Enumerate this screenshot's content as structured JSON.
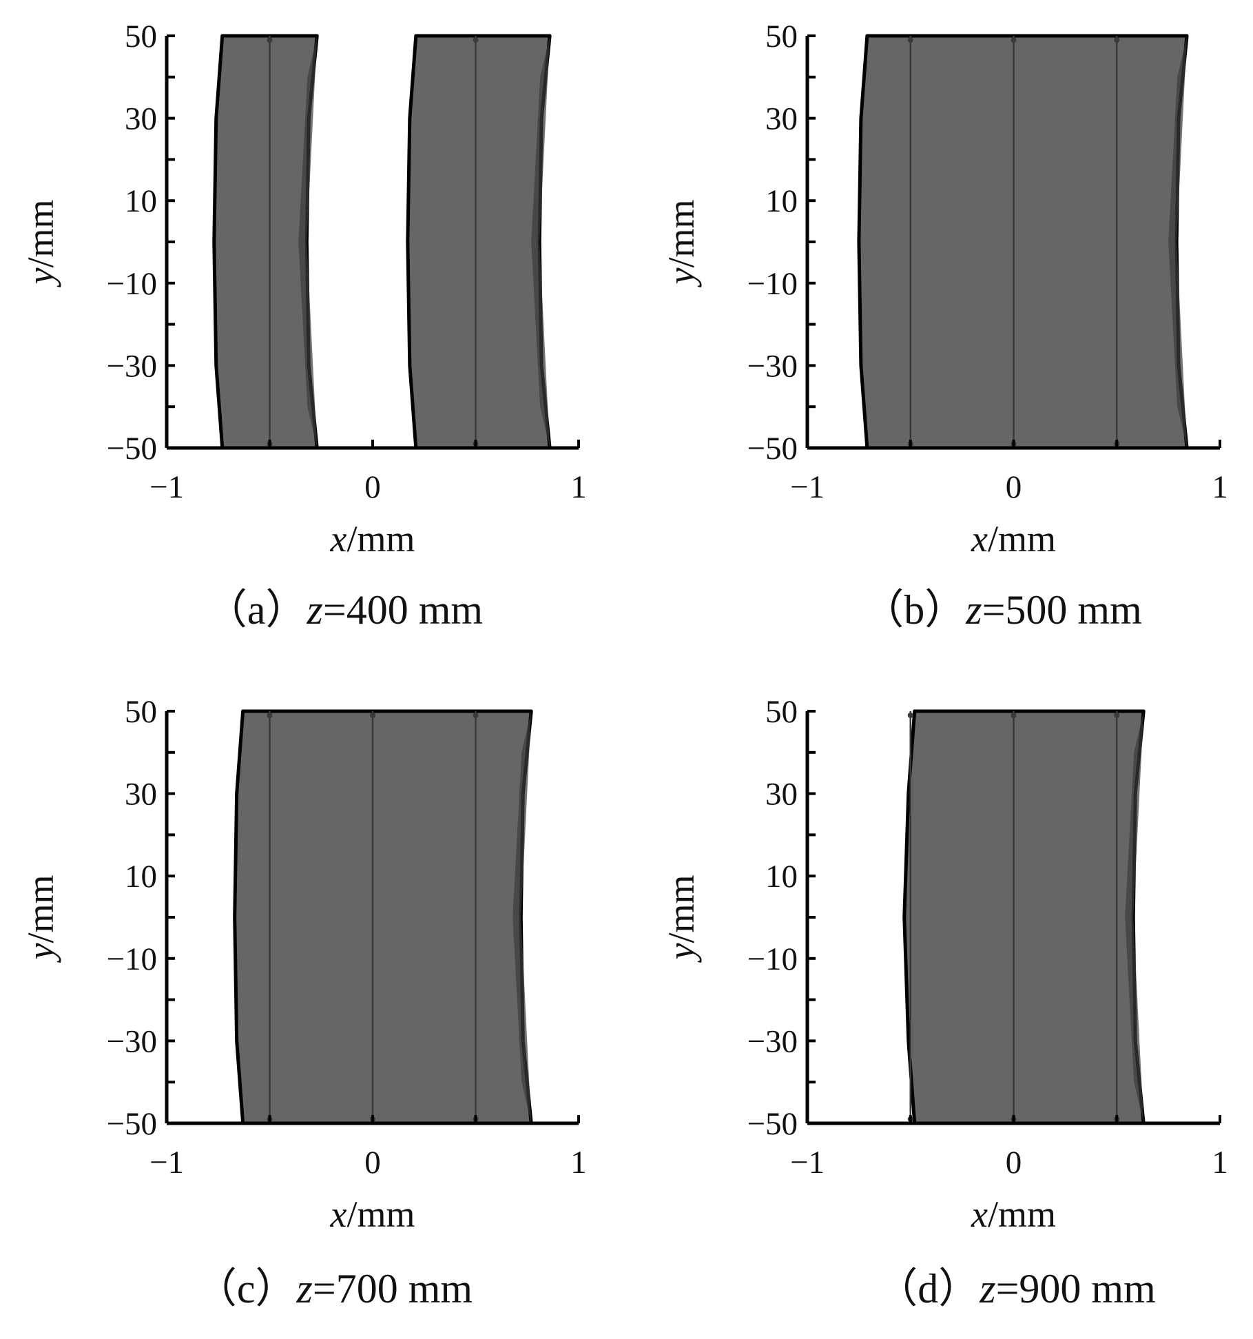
{
  "figure": {
    "panels": [
      {
        "id": "a",
        "caption_prefix": "（a）",
        "caption_var": "z",
        "caption_value": "=400  mm"
      },
      {
        "id": "b",
        "caption_prefix": "（b）",
        "caption_var": "z",
        "caption_value": "=500  mm"
      },
      {
        "id": "c",
        "caption_prefix": "（c）",
        "caption_var": "z",
        "caption_value": "=700  mm"
      },
      {
        "id": "d",
        "caption_prefix": "（d）",
        "caption_var": "z",
        "caption_value": "=900  mm"
      }
    ]
  },
  "chart_data": [
    {
      "type": "area",
      "panel": "a",
      "xlabel": {
        "var": "x",
        "unit": "/mm"
      },
      "ylabel": {
        "var": "y",
        "unit": "/mm"
      },
      "xlim": [
        -1,
        1
      ],
      "ylim": [
        -50,
        50
      ],
      "xticks": [
        -1,
        0,
        1
      ],
      "xtick_labels": [
        "−1",
        "0",
        "1"
      ],
      "yticks": [
        -50,
        -30,
        -10,
        10,
        30,
        50
      ],
      "ytick_labels": [
        "−50",
        "−30",
        "−10",
        "10",
        "30",
        "50"
      ],
      "fill_color": "#666666",
      "regions": [
        {
          "left_edge": [
            [
              -0.73,
              50
            ],
            [
              -0.76,
              30
            ],
            [
              -0.77,
              0
            ],
            [
              -0.76,
              -30
            ],
            [
              -0.73,
              -50
            ]
          ],
          "right_edge": [
            [
              -0.27,
              50
            ],
            [
              -0.31,
              30
            ],
            [
              -0.32,
              0
            ],
            [
              -0.31,
              -30
            ],
            [
              -0.27,
              -50
            ]
          ],
          "inner_lines_x": [
            -0.5
          ]
        },
        {
          "left_edge": [
            [
              0.21,
              50
            ],
            [
              0.18,
              30
            ],
            [
              0.17,
              0
            ],
            [
              0.18,
              -30
            ],
            [
              0.21,
              -50
            ]
          ],
          "right_edge": [
            [
              0.86,
              50
            ],
            [
              0.82,
              30
            ],
            [
              0.81,
              0
            ],
            [
              0.82,
              -30
            ],
            [
              0.86,
              -50
            ]
          ],
          "inner_lines_x": [
            0.5
          ]
        }
      ]
    },
    {
      "type": "area",
      "panel": "b",
      "xlabel": {
        "var": "x",
        "unit": "/mm"
      },
      "ylabel": {
        "var": "y",
        "unit": "/mm"
      },
      "xlim": [
        -1,
        1
      ],
      "ylim": [
        -50,
        50
      ],
      "xticks": [
        -1,
        0,
        1
      ],
      "xtick_labels": [
        "−1",
        "0",
        "1"
      ],
      "yticks": [
        -50,
        -30,
        -10,
        10,
        30,
        50
      ],
      "ytick_labels": [
        "−50",
        "−30",
        "−10",
        "10",
        "30",
        "50"
      ],
      "fill_color": "#666666",
      "regions": [
        {
          "left_edge": [
            [
              -0.71,
              50
            ],
            [
              -0.74,
              30
            ],
            [
              -0.75,
              0
            ],
            [
              -0.74,
              -30
            ],
            [
              -0.71,
              -50
            ]
          ],
          "right_edge": [
            [
              0.84,
              50
            ],
            [
              0.8,
              30
            ],
            [
              0.79,
              0
            ],
            [
              0.8,
              -30
            ],
            [
              0.84,
              -50
            ]
          ],
          "inner_lines_x": [
            -0.5,
            0,
            0.5
          ]
        }
      ]
    },
    {
      "type": "area",
      "panel": "c",
      "xlabel": {
        "var": "x",
        "unit": "/mm"
      },
      "ylabel": {
        "var": "y",
        "unit": "/mm"
      },
      "xlim": [
        -1,
        1
      ],
      "ylim": [
        -50,
        50
      ],
      "xticks": [
        -1,
        0,
        1
      ],
      "xtick_labels": [
        "−1",
        "0",
        "1"
      ],
      "yticks": [
        -50,
        -30,
        -10,
        10,
        30,
        50
      ],
      "ytick_labels": [
        "−50",
        "−30",
        "−10",
        "10",
        "30",
        "50"
      ],
      "fill_color": "#666666",
      "regions": [
        {
          "left_edge": [
            [
              -0.63,
              50
            ],
            [
              -0.66,
              30
            ],
            [
              -0.67,
              0
            ],
            [
              -0.66,
              -30
            ],
            [
              -0.63,
              -50
            ]
          ],
          "right_edge": [
            [
              0.77,
              50
            ],
            [
              0.73,
              30
            ],
            [
              0.72,
              0
            ],
            [
              0.73,
              -30
            ],
            [
              0.77,
              -50
            ]
          ],
          "inner_lines_x": [
            -0.5,
            0,
            0.5
          ]
        }
      ]
    },
    {
      "type": "area",
      "panel": "d",
      "xlabel": {
        "var": "x",
        "unit": "/mm"
      },
      "ylabel": {
        "var": "y",
        "unit": "/mm"
      },
      "xlim": [
        -1,
        1
      ],
      "ylim": [
        -50,
        50
      ],
      "xticks": [
        -1,
        0,
        1
      ],
      "xtick_labels": [
        "−1",
        "0",
        "1"
      ],
      "yticks": [
        -50,
        -30,
        -10,
        10,
        30,
        50
      ],
      "ytick_labels": [
        "−50",
        "−30",
        "−10",
        "10",
        "30",
        "50"
      ],
      "fill_color": "#666666",
      "regions": [
        {
          "left_edge": [
            [
              -0.48,
              50
            ],
            [
              -0.51,
              30
            ],
            [
              -0.53,
              0
            ],
            [
              -0.51,
              -30
            ],
            [
              -0.48,
              -50
            ]
          ],
          "right_edge": [
            [
              0.63,
              50
            ],
            [
              0.59,
              30
            ],
            [
              0.58,
              0
            ],
            [
              0.59,
              -30
            ],
            [
              0.63,
              -50
            ]
          ],
          "inner_lines_x": [
            -0.5,
            0,
            0.5
          ]
        }
      ]
    }
  ]
}
